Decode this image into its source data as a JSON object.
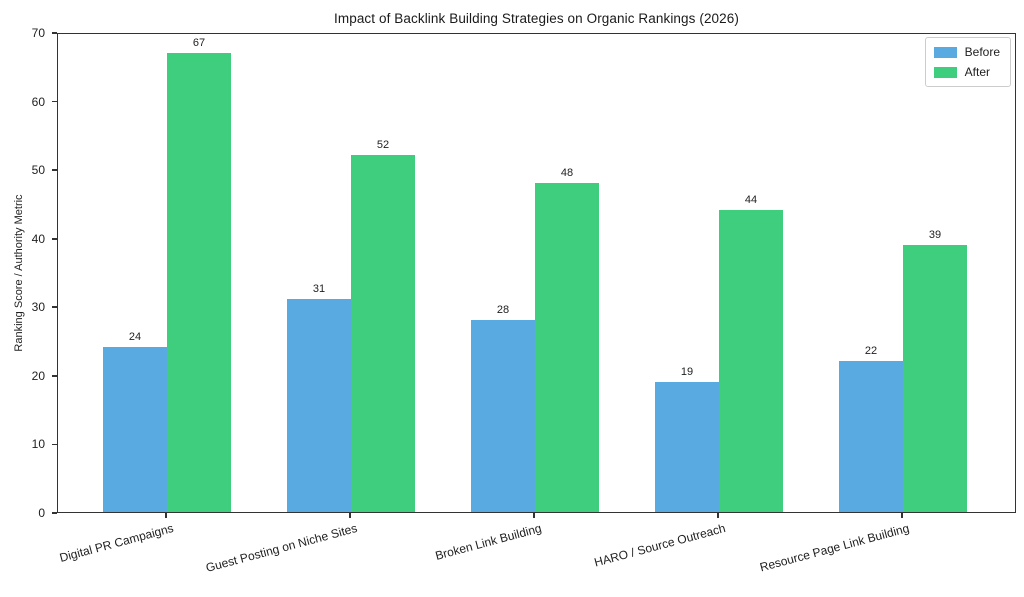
{
  "figure": {
    "title": "Impact of Backlink Building Strategies on Organic Rankings (2026)",
    "ylabel": "Ranking Score / Authority Metric"
  },
  "legend": {
    "items": [
      "Before",
      "After"
    ]
  },
  "colors": {
    "before": "#5AAAE2",
    "after": "#3ECE7E",
    "spine": "#333333",
    "text": "#1f1f1f",
    "legend_border": "#cccccc"
  },
  "chart_data": {
    "type": "bar",
    "title": "Impact of Backlink Building Strategies on Organic Rankings (2026)",
    "xlabel": "",
    "ylabel": "Ranking Score / Authority Metric",
    "categories": [
      "Digital PR Campaigns",
      "Guest Posting on Niche Sites",
      "Broken Link Building",
      "HARO / Source Outreach",
      "Resource Page Link Building"
    ],
    "series": [
      {
        "name": "Before",
        "color": "#5AAAE2",
        "values": [
          24,
          31,
          28,
          19,
          22
        ]
      },
      {
        "name": "After",
        "color": "#3ECE7E",
        "values": [
          67,
          52,
          48,
          44,
          39
        ]
      }
    ],
    "ylim": [
      0,
      70
    ],
    "ytick_step": 10,
    "yticks": [
      0,
      10,
      20,
      30,
      40,
      50,
      60,
      70
    ],
    "grid": false,
    "legend_position": "upper right",
    "bar_value_labels": true,
    "xtick_rotation_deg": 15
  }
}
